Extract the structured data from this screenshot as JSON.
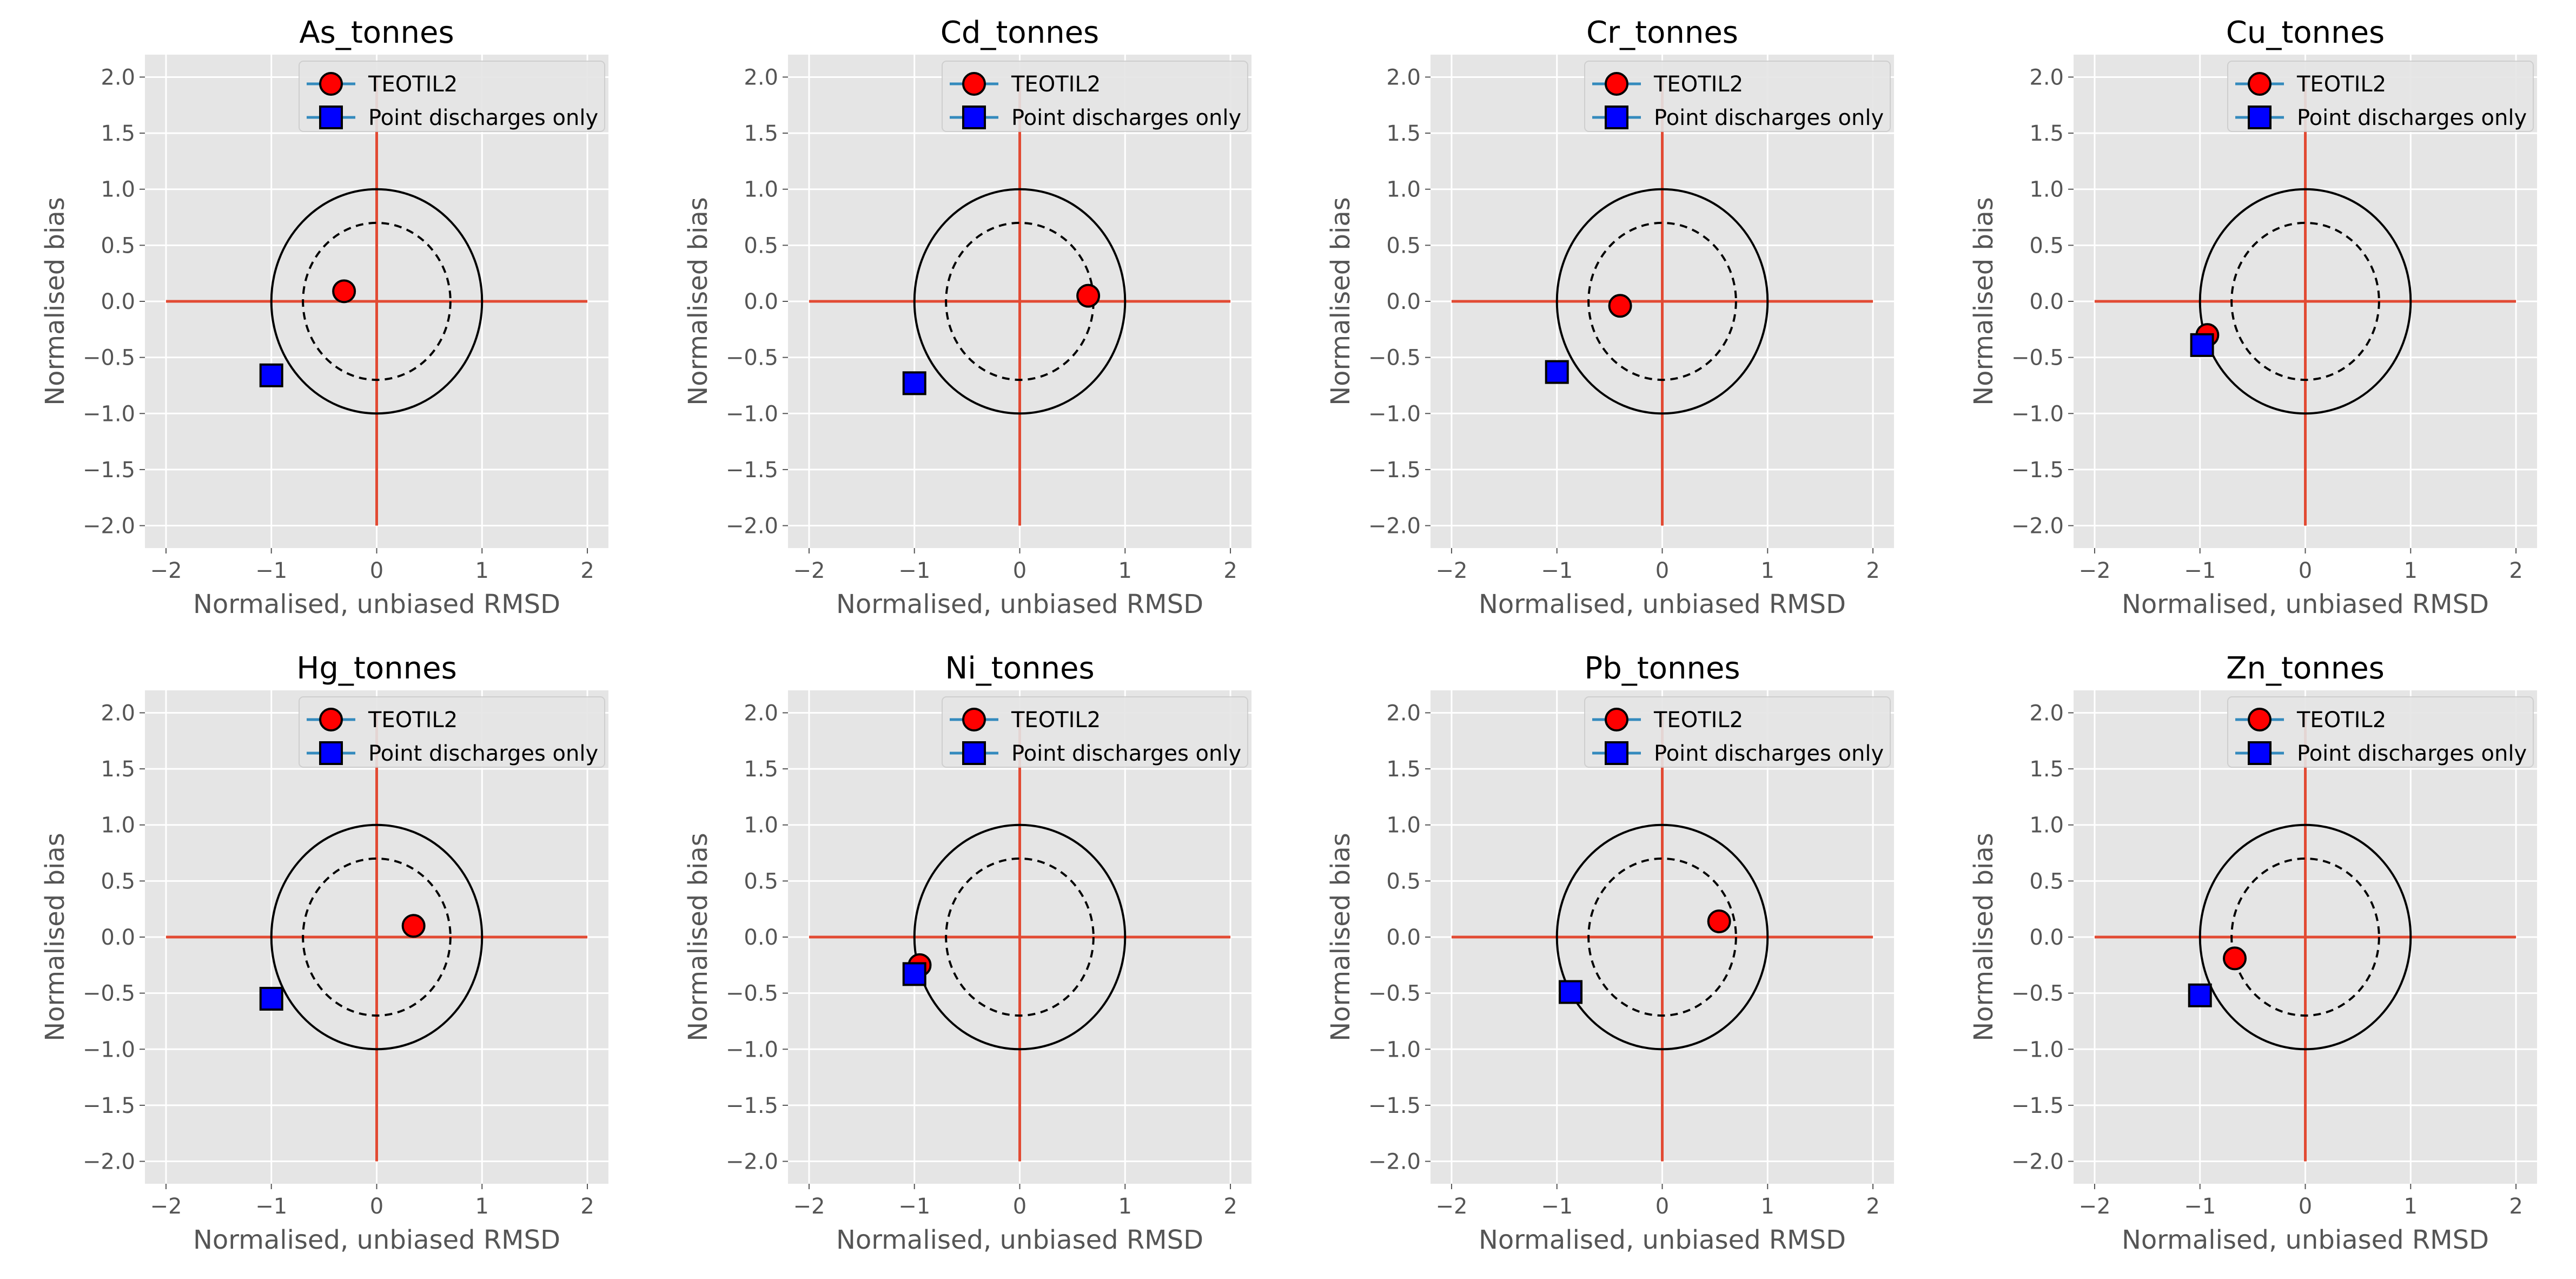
{
  "chart_data": [
    {
      "type": "scatter",
      "title": "As_tonnes",
      "xlabel": "Normalised, unbiased RMSD",
      "ylabel": "Normalised bias",
      "xlim": [
        -2.2,
        2.2
      ],
      "ylim": [
        -2.2,
        2.2
      ],
      "xticks": [
        -2,
        -1,
        0,
        1,
        2
      ],
      "yticks": [
        -2.0,
        -1.5,
        -1.0,
        -0.5,
        0.0,
        0.5,
        1.0,
        1.5,
        2.0
      ],
      "grid": true,
      "legend_position": "upper-center",
      "reference_circles": [
        {
          "radius": 1.0,
          "style": "solid"
        },
        {
          "radius": 0.7,
          "style": "dashed"
        }
      ],
      "series": [
        {
          "name": "TEOTIL2",
          "marker": "circle",
          "color": "#ff0000",
          "x": [
            -0.31
          ],
          "y": [
            0.09
          ]
        },
        {
          "name": "Point discharges only",
          "marker": "square",
          "color": "#0000ff",
          "x": [
            -1.0
          ],
          "y": [
            -0.66
          ]
        }
      ]
    },
    {
      "type": "scatter",
      "title": "Cd_tonnes",
      "xlabel": "Normalised, unbiased RMSD",
      "ylabel": "Normalised bias",
      "xlim": [
        -2.2,
        2.2
      ],
      "ylim": [
        -2.2,
        2.2
      ],
      "xticks": [
        -2,
        -1,
        0,
        1,
        2
      ],
      "yticks": [
        -2.0,
        -1.5,
        -1.0,
        -0.5,
        0.0,
        0.5,
        1.0,
        1.5,
        2.0
      ],
      "grid": true,
      "legend_position": "upper-center",
      "reference_circles": [
        {
          "radius": 1.0,
          "style": "solid"
        },
        {
          "radius": 0.7,
          "style": "dashed"
        }
      ],
      "series": [
        {
          "name": "TEOTIL2",
          "marker": "circle",
          "color": "#ff0000",
          "x": [
            0.65
          ],
          "y": [
            0.05
          ]
        },
        {
          "name": "Point discharges only",
          "marker": "square",
          "color": "#0000ff",
          "x": [
            -1.0
          ],
          "y": [
            -0.73
          ]
        }
      ]
    },
    {
      "type": "scatter",
      "title": "Cr_tonnes",
      "xlabel": "Normalised, unbiased RMSD",
      "ylabel": "Normalised bias",
      "xlim": [
        -2.2,
        2.2
      ],
      "ylim": [
        -2.2,
        2.2
      ],
      "xticks": [
        -2,
        -1,
        0,
        1,
        2
      ],
      "yticks": [
        -2.0,
        -1.5,
        -1.0,
        -0.5,
        0.0,
        0.5,
        1.0,
        1.5,
        2.0
      ],
      "grid": true,
      "legend_position": "upper-center",
      "reference_circles": [
        {
          "radius": 1.0,
          "style": "solid"
        },
        {
          "radius": 0.7,
          "style": "dashed"
        }
      ],
      "series": [
        {
          "name": "TEOTIL2",
          "marker": "circle",
          "color": "#ff0000",
          "x": [
            -0.4
          ],
          "y": [
            -0.04
          ]
        },
        {
          "name": "Point discharges only",
          "marker": "square",
          "color": "#0000ff",
          "x": [
            -1.0
          ],
          "y": [
            -0.63
          ]
        }
      ]
    },
    {
      "type": "scatter",
      "title": "Cu_tonnes",
      "xlabel": "Normalised, unbiased RMSD",
      "ylabel": "Normalised bias",
      "xlim": [
        -2.2,
        2.2
      ],
      "ylim": [
        -2.2,
        2.2
      ],
      "xticks": [
        -2,
        -1,
        0,
        1,
        2
      ],
      "yticks": [
        -2.0,
        -1.5,
        -1.0,
        -0.5,
        0.0,
        0.5,
        1.0,
        1.5,
        2.0
      ],
      "grid": true,
      "legend_position": "upper-center",
      "reference_circles": [
        {
          "radius": 1.0,
          "style": "solid"
        },
        {
          "radius": 0.7,
          "style": "dashed"
        }
      ],
      "series": [
        {
          "name": "TEOTIL2",
          "marker": "circle",
          "color": "#ff0000",
          "x": [
            -0.93
          ],
          "y": [
            -0.3
          ]
        },
        {
          "name": "Point discharges only",
          "marker": "square",
          "color": "#0000ff",
          "x": [
            -0.98
          ],
          "y": [
            -0.39
          ]
        }
      ]
    },
    {
      "type": "scatter",
      "title": "Hg_tonnes",
      "xlabel": "Normalised, unbiased RMSD",
      "ylabel": "Normalised bias",
      "xlim": [
        -2.2,
        2.2
      ],
      "ylim": [
        -2.2,
        2.2
      ],
      "xticks": [
        -2,
        -1,
        0,
        1,
        2
      ],
      "yticks": [
        -2.0,
        -1.5,
        -1.0,
        -0.5,
        0.0,
        0.5,
        1.0,
        1.5,
        2.0
      ],
      "grid": true,
      "legend_position": "upper-center",
      "reference_circles": [
        {
          "radius": 1.0,
          "style": "solid"
        },
        {
          "radius": 0.7,
          "style": "dashed"
        }
      ],
      "series": [
        {
          "name": "TEOTIL2",
          "marker": "circle",
          "color": "#ff0000",
          "x": [
            0.35
          ],
          "y": [
            0.1
          ]
        },
        {
          "name": "Point discharges only",
          "marker": "square",
          "color": "#0000ff",
          "x": [
            -1.0
          ],
          "y": [
            -0.55
          ]
        }
      ]
    },
    {
      "type": "scatter",
      "title": "Ni_tonnes",
      "xlabel": "Normalised, unbiased RMSD",
      "ylabel": "Normalised bias",
      "xlim": [
        -2.2,
        2.2
      ],
      "ylim": [
        -2.2,
        2.2
      ],
      "xticks": [
        -2,
        -1,
        0,
        1,
        2
      ],
      "yticks": [
        -2.0,
        -1.5,
        -1.0,
        -0.5,
        0.0,
        0.5,
        1.0,
        1.5,
        2.0
      ],
      "grid": true,
      "legend_position": "upper-center",
      "reference_circles": [
        {
          "radius": 1.0,
          "style": "solid"
        },
        {
          "radius": 0.7,
          "style": "dashed"
        }
      ],
      "series": [
        {
          "name": "TEOTIL2",
          "marker": "circle",
          "color": "#ff0000",
          "x": [
            -0.95
          ],
          "y": [
            -0.25
          ]
        },
        {
          "name": "Point discharges only",
          "marker": "square",
          "color": "#0000ff",
          "x": [
            -1.0
          ],
          "y": [
            -0.33
          ]
        }
      ]
    },
    {
      "type": "scatter",
      "title": "Pb_tonnes",
      "xlabel": "Normalised, unbiased RMSD",
      "ylabel": "Normalised bias",
      "xlim": [
        -2.2,
        2.2
      ],
      "ylim": [
        -2.2,
        2.2
      ],
      "xticks": [
        -2,
        -1,
        0,
        1,
        2
      ],
      "yticks": [
        -2.0,
        -1.5,
        -1.0,
        -0.5,
        0.0,
        0.5,
        1.0,
        1.5,
        2.0
      ],
      "grid": true,
      "legend_position": "upper-center",
      "reference_circles": [
        {
          "radius": 1.0,
          "style": "solid"
        },
        {
          "radius": 0.7,
          "style": "dashed"
        }
      ],
      "series": [
        {
          "name": "TEOTIL2",
          "marker": "circle",
          "color": "#ff0000",
          "x": [
            0.54
          ],
          "y": [
            0.14
          ]
        },
        {
          "name": "Point discharges only",
          "marker": "square",
          "color": "#0000ff",
          "x": [
            -0.87
          ],
          "y": [
            -0.49
          ]
        }
      ]
    },
    {
      "type": "scatter",
      "title": "Zn_tonnes",
      "xlabel": "Normalised, unbiased RMSD",
      "ylabel": "Normalised bias",
      "xlim": [
        -2.2,
        2.2
      ],
      "ylim": [
        -2.2,
        2.2
      ],
      "xticks": [
        -2,
        -1,
        0,
        1,
        2
      ],
      "yticks": [
        -2.0,
        -1.5,
        -1.0,
        -0.5,
        0.0,
        0.5,
        1.0,
        1.5,
        2.0
      ],
      "grid": true,
      "legend_position": "upper-center",
      "reference_circles": [
        {
          "radius": 1.0,
          "style": "solid"
        },
        {
          "radius": 0.7,
          "style": "dashed"
        }
      ],
      "series": [
        {
          "name": "TEOTIL2",
          "marker": "circle",
          "color": "#ff0000",
          "x": [
            -0.67
          ],
          "y": [
            -0.19
          ]
        },
        {
          "name": "Point discharges only",
          "marker": "square",
          "color": "#0000ff",
          "x": [
            -1.0
          ],
          "y": [
            -0.52
          ]
        }
      ]
    }
  ],
  "colors": {
    "panel_background": "#e5e5e5",
    "grid": "#ffffff",
    "axis_lines": "#e24a33",
    "circles": "#000000",
    "legend_line": "#348abd"
  }
}
